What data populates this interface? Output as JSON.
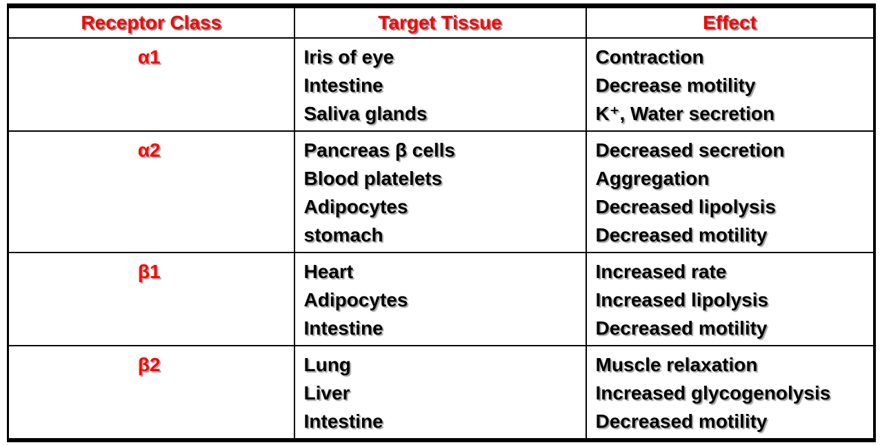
{
  "colors": {
    "accent": "#ff0000",
    "body_text": "#000000",
    "grid_lines": "#000000",
    "background": "#ffffff"
  },
  "table": {
    "headers": [
      "Receptor Class",
      "Target Tissue",
      "Effect"
    ],
    "rows": [
      {
        "receptor": "α1",
        "tissues": [
          "Iris of eye",
          "Intestine",
          "Saliva glands"
        ],
        "effects": [
          "Contraction",
          "Decrease motility",
          "K⁺, Water secretion"
        ]
      },
      {
        "receptor": "α2",
        "tissues": [
          "Pancreas β cells",
          "Blood platelets",
          "Adipocytes",
          "stomach"
        ],
        "effects": [
          "Decreased secretion",
          "Aggregation",
          "Decreased lipolysis",
          "Decreased motility"
        ]
      },
      {
        "receptor": "β1",
        "tissues": [
          "Heart",
          "Adipocytes",
          "Intestine"
        ],
        "effects": [
          "Increased rate",
          "Increased lipolysis",
          "Decreased motility"
        ]
      },
      {
        "receptor": "β2",
        "tissues": [
          "Lung",
          "Liver",
          "Intestine"
        ],
        "effects": [
          "Muscle relaxation",
          "Increased glycogenolysis",
          "Decreased motility"
        ]
      }
    ]
  }
}
